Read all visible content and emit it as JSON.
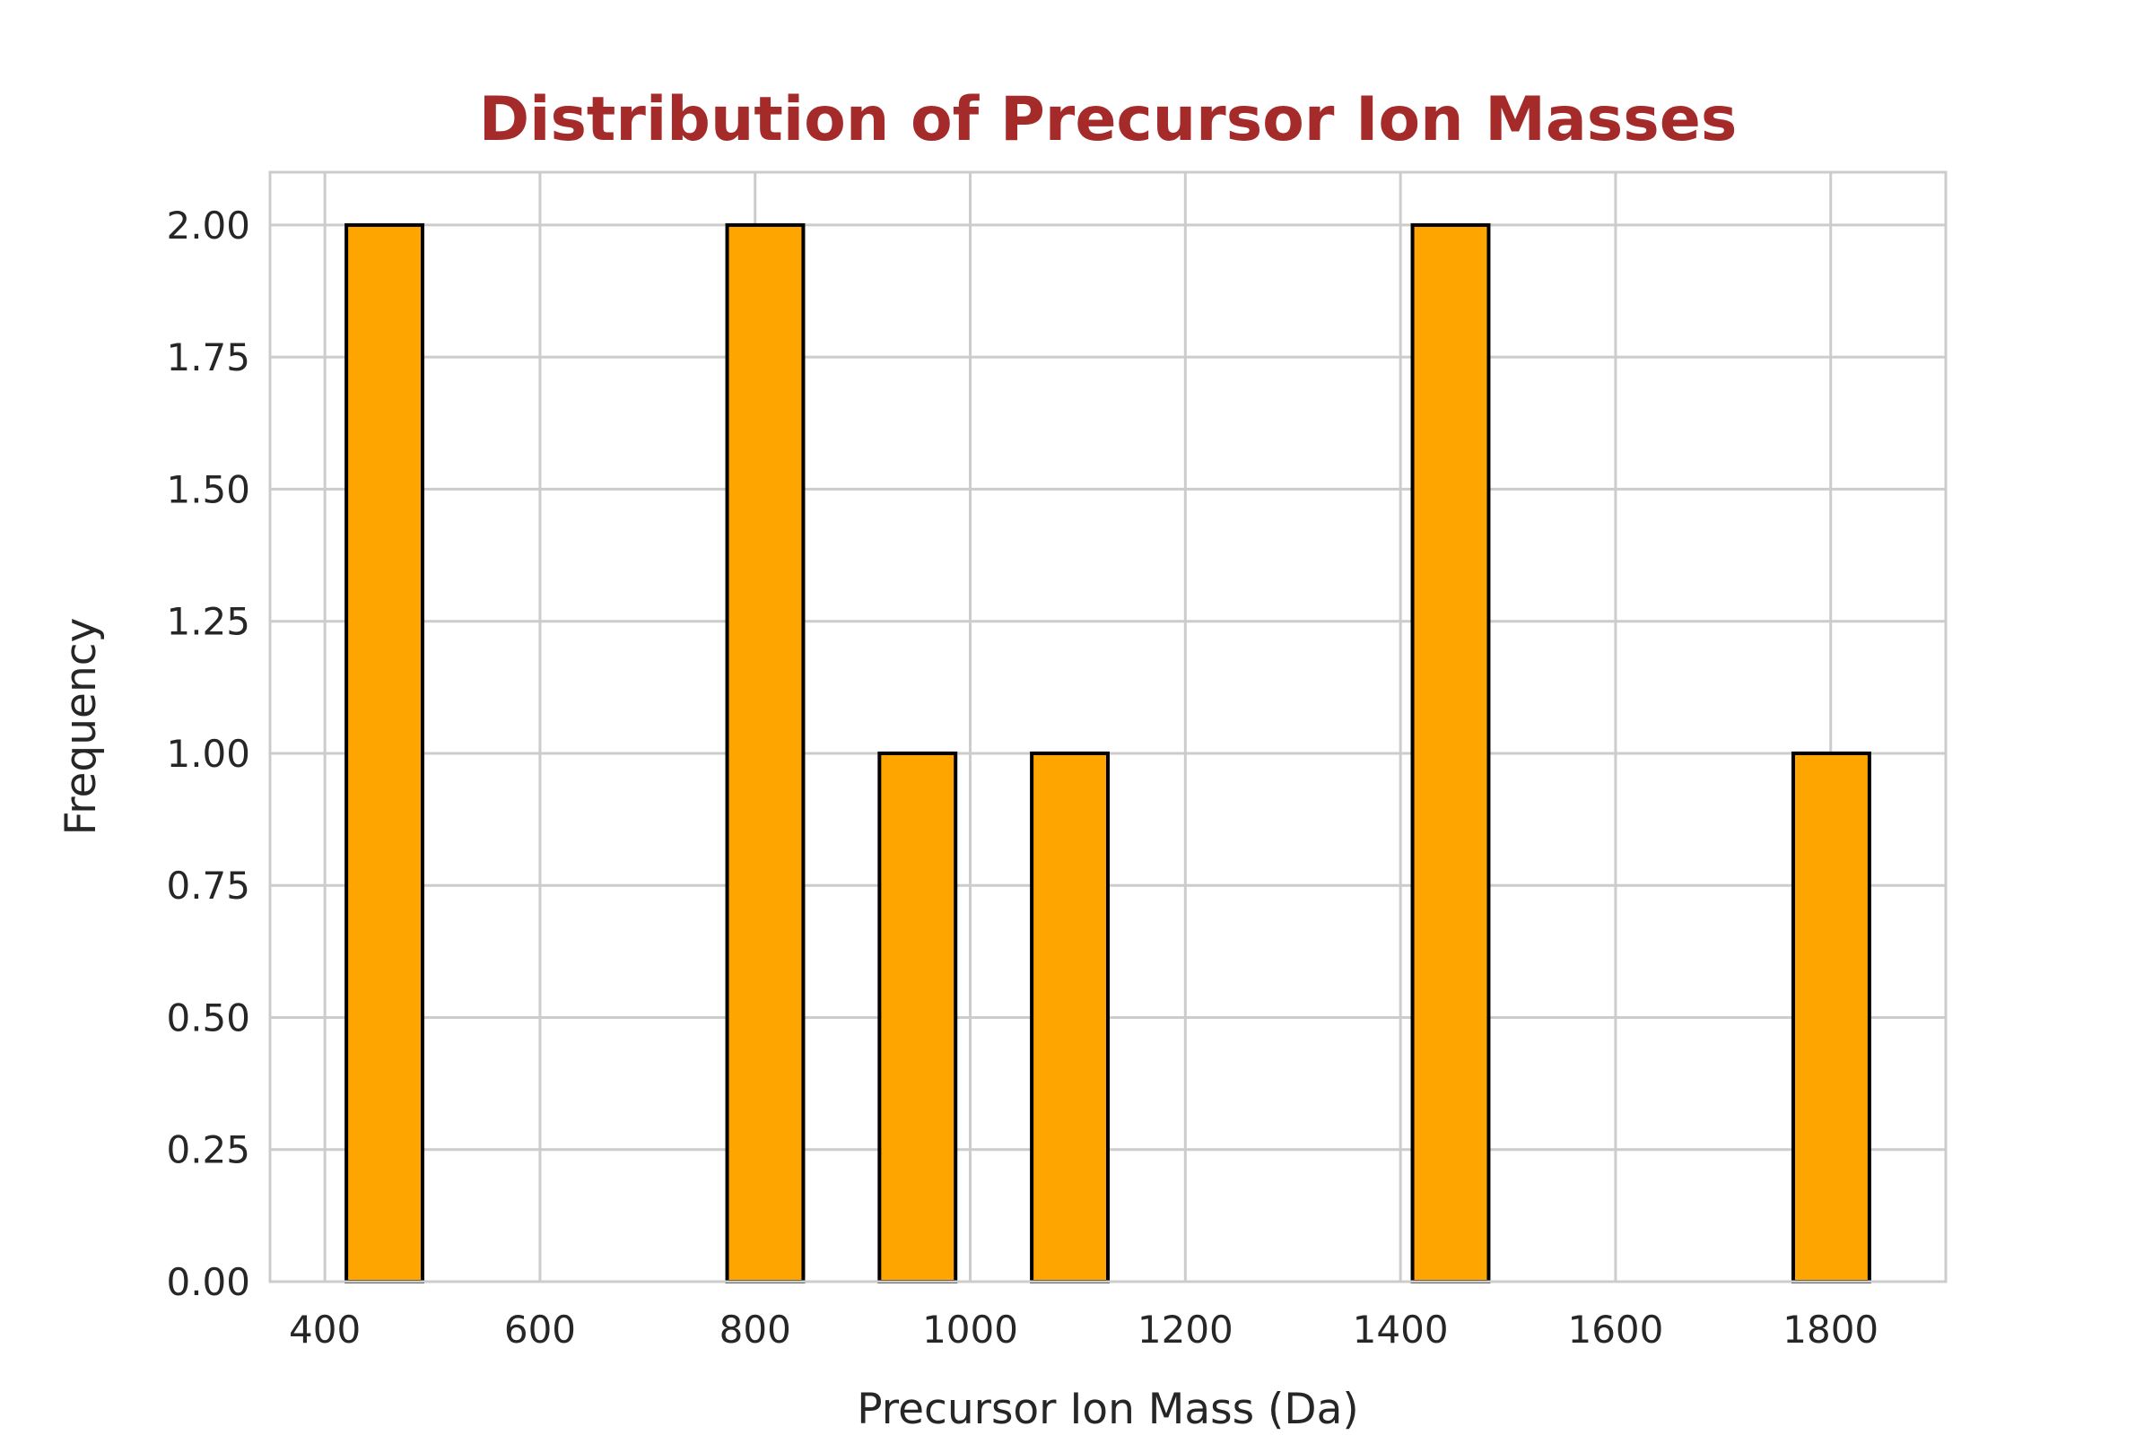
{
  "chart_data": {
    "type": "bar",
    "subtype": "histogram",
    "title": "Distribution of Precursor Ion Masses",
    "xlabel": "Precursor Ion Mass (Da)",
    "ylabel": "Frequency",
    "bin_range": [
      420,
      1836
    ],
    "bins": 20,
    "counts": [
      2,
      0,
      0,
      0,
      0,
      2,
      0,
      1,
      0,
      1,
      0,
      0,
      0,
      0,
      2,
      0,
      0,
      0,
      0,
      1
    ],
    "xlim": [
      349,
      1907
    ],
    "ylim": [
      0,
      2.1
    ],
    "xticks": [
      400,
      600,
      800,
      1000,
      1200,
      1400,
      1600,
      1800
    ],
    "xtick_labels": [
      "400",
      "600",
      "800",
      "1000",
      "1200",
      "1400",
      "1600",
      "1800"
    ],
    "yticks": [
      0,
      0.25,
      0.5,
      0.75,
      1,
      1.25,
      1.5,
      1.75,
      2
    ],
    "ytick_labels": [
      "0.00",
      "0.25",
      "0.50",
      "0.75",
      "1.00",
      "1.25",
      "1.50",
      "1.75",
      "2.00"
    ],
    "grid": true,
    "colors": {
      "bar": "#FFA500",
      "edge": "#000000",
      "title": "#A52A2A",
      "grid": "#CCCCCC"
    }
  }
}
